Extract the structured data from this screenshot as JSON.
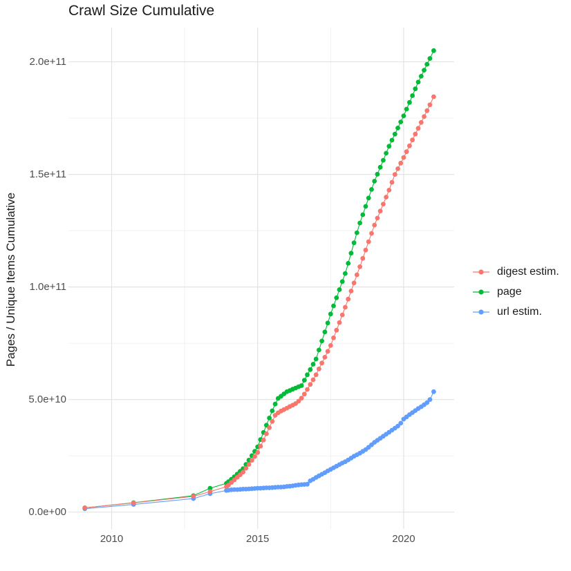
{
  "chart_data": {
    "type": "scatter",
    "title": "Crawl Size Cumulative",
    "xlabel": "",
    "ylabel": "Pages / Unique Items Cumulative",
    "value_unit": "1e9",
    "legend_position": "right",
    "grid": true,
    "colors": {
      "background": "#ffffff",
      "grid_major": "#e3e3e3",
      "grid_minor": "#f0f0f0",
      "tick_label": "#4d4d4d",
      "text": "#1a1a1a"
    },
    "x_axis": {
      "min": 2008.52,
      "max": 2021.73,
      "ticks": [
        {
          "value": 2010,
          "label": "2010"
        },
        {
          "value": 2015,
          "label": "2015"
        },
        {
          "value": 2020,
          "label": "2020"
        }
      ],
      "minor": [
        2012.5,
        2017.5
      ]
    },
    "y_axis": {
      "min": -7.45,
      "max": 215.2,
      "ticks": [
        {
          "value": 0,
          "label": "0.0e+00"
        },
        {
          "value": 50,
          "label": "5.0e+10"
        },
        {
          "value": 100,
          "label": "1.0e+11"
        },
        {
          "value": 150,
          "label": "1.5e+11"
        },
        {
          "value": 200,
          "label": "2.0e+11"
        }
      ],
      "minor": [
        25,
        75,
        125,
        175
      ]
    },
    "draw_order": [
      2,
      1,
      0
    ],
    "series": [
      {
        "name": "digest estim.",
        "color": "#F8766D",
        "points": [
          [
            2009.08,
            1.9
          ],
          [
            2010.75,
            4.1
          ],
          [
            2012.8,
            7.0
          ],
          [
            2013.37,
            9.1
          ],
          [
            2013.93,
            11.3
          ],
          [
            2014.0,
            12.0
          ],
          [
            2014.1,
            13.2
          ],
          [
            2014.2,
            14.3
          ],
          [
            2014.3,
            15.5
          ],
          [
            2014.4,
            16.6
          ],
          [
            2014.5,
            17.8
          ],
          [
            2014.6,
            19.5
          ],
          [
            2014.7,
            21.2
          ],
          [
            2014.8,
            23.0
          ],
          [
            2014.9,
            24.7
          ],
          [
            2015.0,
            26.5
          ],
          [
            2015.1,
            29.3
          ],
          [
            2015.2,
            32.0
          ],
          [
            2015.3,
            34.8
          ],
          [
            2015.4,
            37.5
          ],
          [
            2015.5,
            40.3
          ],
          [
            2015.6,
            43.0
          ],
          [
            2015.7,
            44.1
          ],
          [
            2015.8,
            44.9
          ],
          [
            2015.9,
            45.5
          ],
          [
            2016.0,
            46.2
          ],
          [
            2016.1,
            46.9
          ],
          [
            2016.2,
            47.5
          ],
          [
            2016.3,
            48.2
          ],
          [
            2016.4,
            49.3
          ],
          [
            2016.5,
            50.6
          ],
          [
            2016.6,
            52.4
          ],
          [
            2016.7,
            54.5
          ],
          [
            2016.8,
            56.7
          ],
          [
            2016.9,
            58.8
          ],
          [
            2017.0,
            61.0
          ],
          [
            2017.1,
            63.6
          ],
          [
            2017.2,
            66.2
          ],
          [
            2017.3,
            68.8
          ],
          [
            2017.4,
            71.4
          ],
          [
            2017.5,
            74.0
          ],
          [
            2017.6,
            77.4
          ],
          [
            2017.7,
            80.8
          ],
          [
            2017.8,
            84.2
          ],
          [
            2017.9,
            87.6
          ],
          [
            2018.0,
            91.0
          ],
          [
            2018.1,
            94.6
          ],
          [
            2018.2,
            98.2
          ],
          [
            2018.3,
            101.8
          ],
          [
            2018.4,
            105.4
          ],
          [
            2018.5,
            109.0
          ],
          [
            2018.6,
            112.7
          ],
          [
            2018.7,
            116.4
          ],
          [
            2018.8,
            120.1
          ],
          [
            2018.9,
            123.8
          ],
          [
            2019.0,
            127.5
          ],
          [
            2019.1,
            130.6
          ],
          [
            2019.2,
            133.7
          ],
          [
            2019.3,
            136.8
          ],
          [
            2019.4,
            139.9
          ],
          [
            2019.5,
            143.0
          ],
          [
            2019.6,
            146.5
          ],
          [
            2019.7,
            150.0
          ],
          [
            2019.8,
            152.5
          ],
          [
            2019.9,
            155.0
          ],
          [
            2020.0,
            157.5
          ],
          [
            2020.1,
            160.1
          ],
          [
            2020.2,
            162.7
          ],
          [
            2020.3,
            165.3
          ],
          [
            2020.4,
            167.9
          ],
          [
            2020.5,
            170.5
          ],
          [
            2020.6,
            173.1
          ],
          [
            2020.7,
            175.7
          ],
          [
            2020.8,
            178.3
          ],
          [
            2020.9,
            180.9
          ],
          [
            2021.03,
            184.5
          ]
        ]
      },
      {
        "name": "page",
        "color": "#00BA38",
        "points": [
          [
            2009.08,
            1.9
          ],
          [
            2010.75,
            4.2
          ],
          [
            2012.8,
            7.3
          ],
          [
            2013.37,
            10.6
          ],
          [
            2013.93,
            12.8
          ],
          [
            2014.0,
            13.5
          ],
          [
            2014.1,
            14.6
          ],
          [
            2014.2,
            15.7
          ],
          [
            2014.3,
            16.9
          ],
          [
            2014.4,
            18.1
          ],
          [
            2014.5,
            19.3
          ],
          [
            2014.6,
            21.2
          ],
          [
            2014.7,
            23.1
          ],
          [
            2014.8,
            25.1
          ],
          [
            2014.9,
            27.0
          ],
          [
            2015.0,
            29.0
          ],
          [
            2015.1,
            32.2
          ],
          [
            2015.2,
            35.4
          ],
          [
            2015.3,
            38.6
          ],
          [
            2015.4,
            41.8
          ],
          [
            2015.5,
            45.0
          ],
          [
            2015.6,
            48.0
          ],
          [
            2015.7,
            50.5
          ],
          [
            2015.8,
            51.5
          ],
          [
            2015.9,
            52.5
          ],
          [
            2016.0,
            53.5
          ],
          [
            2016.1,
            54.0
          ],
          [
            2016.2,
            54.6
          ],
          [
            2016.3,
            55.1
          ],
          [
            2016.4,
            55.7
          ],
          [
            2016.5,
            56.2
          ],
          [
            2016.6,
            58.6
          ],
          [
            2016.7,
            61.0
          ],
          [
            2016.8,
            63.3
          ],
          [
            2016.9,
            65.7
          ],
          [
            2017.0,
            68.0
          ],
          [
            2017.1,
            72.0
          ],
          [
            2017.2,
            76.0
          ],
          [
            2017.3,
            80.0
          ],
          [
            2017.4,
            84.0
          ],
          [
            2017.5,
            88.0
          ],
          [
            2017.6,
            91.6
          ],
          [
            2017.7,
            95.2
          ],
          [
            2017.8,
            98.8
          ],
          [
            2017.9,
            102.4
          ],
          [
            2018.0,
            106.0
          ],
          [
            2018.1,
            110.5
          ],
          [
            2018.2,
            115.0
          ],
          [
            2018.3,
            119.6
          ],
          [
            2018.4,
            124.1
          ],
          [
            2018.5,
            128.4
          ],
          [
            2018.6,
            132.1
          ],
          [
            2018.7,
            135.8
          ],
          [
            2018.8,
            139.5
          ],
          [
            2018.9,
            143.3
          ],
          [
            2019.0,
            147.0
          ],
          [
            2019.1,
            150.1
          ],
          [
            2019.2,
            153.2
          ],
          [
            2019.3,
            156.3
          ],
          [
            2019.4,
            159.4
          ],
          [
            2019.5,
            162.5
          ],
          [
            2019.6,
            165.2
          ],
          [
            2019.7,
            167.9
          ],
          [
            2019.8,
            170.6
          ],
          [
            2019.9,
            173.3
          ],
          [
            2020.0,
            176.0
          ],
          [
            2020.1,
            179.0
          ],
          [
            2020.2,
            182.0
          ],
          [
            2020.3,
            185.0
          ],
          [
            2020.4,
            188.0
          ],
          [
            2020.5,
            191.0
          ],
          [
            2020.6,
            193.6
          ],
          [
            2020.7,
            196.3
          ],
          [
            2020.8,
            198.9
          ],
          [
            2020.9,
            201.5
          ],
          [
            2021.03,
            205.0
          ]
        ]
      },
      {
        "name": "url estim.",
        "color": "#619CFF",
        "points": [
          [
            2009.08,
            1.5
          ],
          [
            2010.75,
            3.4
          ],
          [
            2012.8,
            6.0
          ],
          [
            2013.37,
            8.2
          ],
          [
            2013.93,
            9.6
          ],
          [
            2014.0,
            9.8
          ],
          [
            2014.1,
            9.9
          ],
          [
            2014.2,
            10.0
          ],
          [
            2014.3,
            10.0
          ],
          [
            2014.4,
            10.1
          ],
          [
            2014.5,
            10.2
          ],
          [
            2014.6,
            10.2
          ],
          [
            2014.7,
            10.3
          ],
          [
            2014.8,
            10.4
          ],
          [
            2014.9,
            10.5
          ],
          [
            2015.0,
            10.6
          ],
          [
            2015.1,
            10.6
          ],
          [
            2015.2,
            10.7
          ],
          [
            2015.3,
            10.8
          ],
          [
            2015.4,
            10.8
          ],
          [
            2015.5,
            10.9
          ],
          [
            2015.6,
            11.0
          ],
          [
            2015.7,
            11.1
          ],
          [
            2015.8,
            11.1
          ],
          [
            2015.9,
            11.2
          ],
          [
            2016.0,
            11.4
          ],
          [
            2016.1,
            11.5
          ],
          [
            2016.2,
            11.7
          ],
          [
            2016.3,
            11.9
          ],
          [
            2016.4,
            12.1
          ],
          [
            2016.5,
            12.2
          ],
          [
            2016.6,
            12.3
          ],
          [
            2016.7,
            12.4
          ],
          [
            2016.8,
            13.9
          ],
          [
            2016.9,
            14.6
          ],
          [
            2017.0,
            15.4
          ],
          [
            2017.1,
            16.1
          ],
          [
            2017.2,
            16.8
          ],
          [
            2017.3,
            17.5
          ],
          [
            2017.4,
            18.3
          ],
          [
            2017.5,
            19.0
          ],
          [
            2017.6,
            19.7
          ],
          [
            2017.7,
            20.4
          ],
          [
            2017.8,
            21.1
          ],
          [
            2017.9,
            21.8
          ],
          [
            2018.0,
            22.4
          ],
          [
            2018.1,
            23.2
          ],
          [
            2018.2,
            24.0
          ],
          [
            2018.3,
            24.8
          ],
          [
            2018.4,
            25.5
          ],
          [
            2018.5,
            26.2
          ],
          [
            2018.6,
            27.0
          ],
          [
            2018.7,
            27.8
          ],
          [
            2018.8,
            28.8
          ],
          [
            2018.9,
            29.9
          ],
          [
            2019.0,
            31.0
          ],
          [
            2019.1,
            31.9
          ],
          [
            2019.2,
            32.8
          ],
          [
            2019.3,
            33.7
          ],
          [
            2019.4,
            34.6
          ],
          [
            2019.5,
            35.5
          ],
          [
            2019.6,
            36.4
          ],
          [
            2019.7,
            37.3
          ],
          [
            2019.8,
            38.2
          ],
          [
            2019.9,
            39.5
          ],
          [
            2020.0,
            41.3
          ],
          [
            2020.1,
            42.3
          ],
          [
            2020.2,
            43.3
          ],
          [
            2020.3,
            44.2
          ],
          [
            2020.4,
            45.1
          ],
          [
            2020.5,
            46.0
          ],
          [
            2020.6,
            46.8
          ],
          [
            2020.7,
            47.7
          ],
          [
            2020.8,
            48.6
          ],
          [
            2020.9,
            50.0
          ],
          [
            2021.03,
            53.5
          ]
        ]
      }
    ]
  }
}
